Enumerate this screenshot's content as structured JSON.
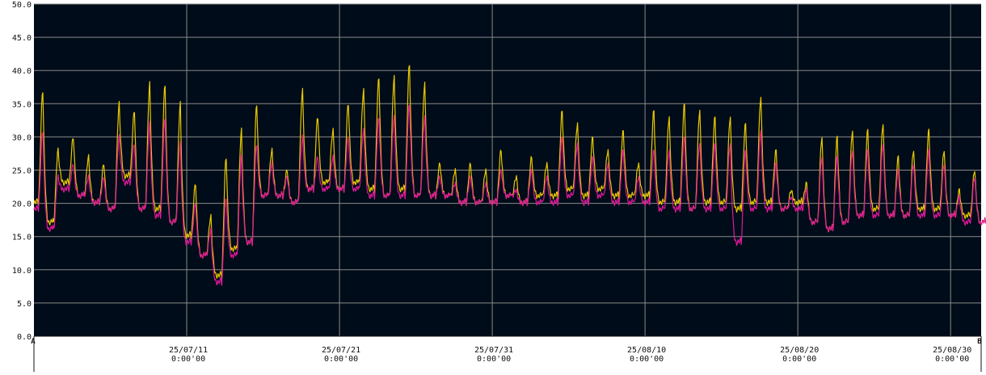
{
  "chart_data": {
    "type": "line",
    "background_color": "#000c19",
    "grid": true,
    "grid_color": "#8a8a8a",
    "ylim": [
      0,
      50
    ],
    "y_ticks": [
      "50.0",
      "45.0",
      "40.0",
      "35.0",
      "30.0",
      "25.0",
      "20.0",
      "15.0",
      "10.0",
      "5.0",
      "0.0"
    ],
    "x_range": [
      "2025-07-01",
      "2025-09-01"
    ],
    "x_ticks": [
      {
        "date": "2025-07-11",
        "label1": "25/07/11",
        "label2": "0:00'00"
      },
      {
        "date": "2025-07-21",
        "label1": "25/07/21",
        "label2": "0:00'00"
      },
      {
        "date": "2025-07-31",
        "label1": "25/07/31",
        "label2": "0:00'00"
      },
      {
        "date": "2025-08-10",
        "label1": "25/08/10",
        "label2": "0:00'00"
      },
      {
        "date": "2025-08-20",
        "label1": "25/08/20",
        "label2": "0:00'00"
      },
      {
        "date": "2025-08-30",
        "label1": "25/08/30",
        "label2": "0:00'00"
      }
    ],
    "cursor_a_label": "A",
    "cursor_b_label": "B",
    "series": [
      {
        "color": "#e8c800",
        "daily_min": [
          20,
          17,
          23,
          21,
          20,
          19,
          24,
          19,
          19,
          17,
          15,
          12,
          9,
          13,
          14,
          21,
          21,
          20,
          22,
          23,
          22,
          23,
          22,
          21,
          22,
          21,
          21,
          21,
          20,
          20,
          20,
          21,
          20,
          21,
          21,
          22,
          21,
          22,
          21,
          21,
          21,
          20,
          20,
          19,
          20,
          20,
          19,
          20,
          20,
          19,
          20,
          17,
          16,
          17,
          18,
          19,
          18,
          18,
          19,
          19,
          18,
          18,
          17
        ],
        "daily_max": [
          37,
          28,
          30,
          27,
          26,
          35,
          34,
          38,
          38,
          35,
          23,
          18,
          27,
          31,
          35,
          28,
          25,
          37,
          33,
          31,
          35,
          37,
          39,
          39,
          41,
          38,
          26,
          25,
          26,
          25,
          28,
          24,
          27,
          26,
          34,
          32,
          30,
          28,
          31,
          26,
          34,
          33,
          35,
          34,
          33,
          33,
          32,
          36,
          28,
          22,
          23,
          30,
          30,
          31,
          31,
          32,
          27,
          28,
          31,
          28,
          22,
          25,
          24
        ],
        "values": []
      },
      {
        "color": "#e0189a",
        "daily_min": [
          19,
          16,
          22,
          21,
          20,
          19,
          23,
          19,
          18,
          17,
          14,
          12,
          8,
          12,
          14,
          21,
          21,
          20,
          22,
          22,
          22,
          22,
          21,
          21,
          21,
          21,
          21,
          21,
          20,
          20,
          20,
          21,
          20,
          20,
          20,
          21,
          20,
          21,
          20,
          20,
          20,
          19,
          19,
          19,
          19,
          19,
          14,
          19,
          19,
          19,
          19,
          17,
          16,
          17,
          18,
          18,
          18,
          18,
          18,
          18,
          18,
          17,
          17
        ],
        "daily_max": [
          31,
          24,
          26,
          24,
          24,
          30,
          29,
          32,
          33,
          29,
          20,
          16,
          21,
          27,
          29,
          26,
          24,
          30,
          27,
          27,
          30,
          31,
          33,
          33,
          35,
          33,
          24,
          23,
          24,
          23,
          25,
          22,
          25,
          24,
          30,
          29,
          27,
          26,
          28,
          24,
          28,
          28,
          30,
          29,
          29,
          29,
          28,
          31,
          26,
          21,
          22,
          27,
          27,
          28,
          28,
          29,
          25,
          26,
          28,
          26,
          21,
          24,
          22
        ],
        "values": []
      }
    ]
  }
}
